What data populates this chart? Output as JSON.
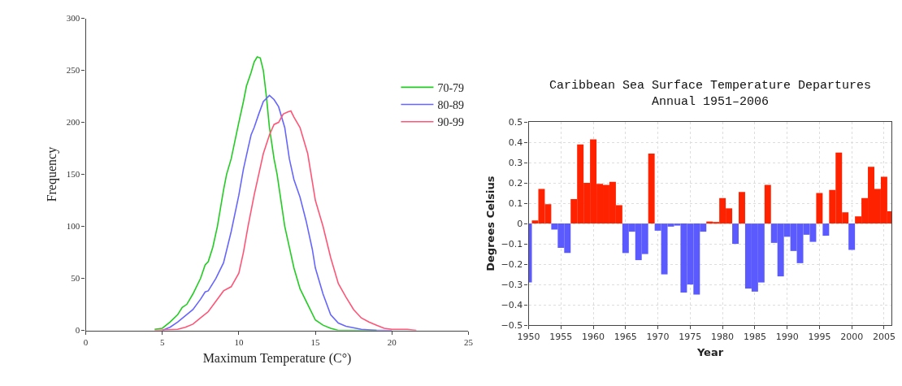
{
  "chart_data": [
    {
      "type": "line",
      "xlabel": "Maximum Temperature (C°)",
      "ylabel": "Frequency",
      "xlim": [
        0,
        25
      ],
      "ylim": [
        0,
        300
      ],
      "xticks": [
        0,
        5,
        10,
        15,
        20,
        25
      ],
      "yticks": [
        0,
        50,
        100,
        150,
        200,
        250,
        300
      ],
      "grid": false,
      "legend": "top right",
      "marker": "none",
      "line_style": "solid",
      "series": [
        {
          "name": "70-79",
          "color": "#22cc22",
          "x": [
            4.5,
            5,
            5.5,
            6,
            6.3,
            6.6,
            7,
            7.5,
            7.8,
            8,
            8.3,
            8.6,
            9,
            9.2,
            9.5,
            10,
            10.3,
            10.5,
            10.8,
            11,
            11.2,
            11.4,
            11.6,
            11.8,
            12,
            12.3,
            12.5,
            12.8,
            13,
            13.3,
            13.6,
            14,
            14.5,
            15,
            15.5,
            16,
            16.5,
            17,
            19
          ],
          "values": [
            1,
            2,
            8,
            15,
            22,
            25,
            35,
            50,
            63,
            66,
            80,
            100,
            135,
            150,
            165,
            200,
            220,
            235,
            248,
            258,
            263,
            262,
            250,
            225,
            195,
            165,
            150,
            120,
            100,
            80,
            60,
            40,
            25,
            10,
            5,
            2,
            0,
            0,
            0
          ]
        },
        {
          "name": "80-89",
          "color": "#6666ff",
          "x": [
            5,
            5.5,
            6,
            6.5,
            7,
            7.5,
            7.8,
            8,
            8.5,
            9,
            9.5,
            10,
            10.3,
            10.6,
            10.8,
            11,
            11.3,
            11.6,
            12,
            12.3,
            12.6,
            13,
            13.3,
            13.6,
            14,
            14.4,
            14.8,
            15,
            15.5,
            16,
            16.5,
            17,
            18,
            19,
            20
          ],
          "values": [
            0,
            3,
            8,
            14,
            20,
            30,
            37,
            38,
            50,
            65,
            95,
            130,
            155,
            175,
            188,
            195,
            208,
            220,
            226,
            222,
            215,
            195,
            165,
            145,
            128,
            105,
            78,
            60,
            35,
            15,
            7,
            4,
            1,
            0,
            0
          ]
        },
        {
          "name": "90-99",
          "color": "#ff5577",
          "x": [
            4.5,
            6,
            6.5,
            7,
            7.5,
            8,
            8.5,
            9,
            9.5,
            10,
            10.3,
            10.6,
            11,
            11.3,
            11.6,
            12,
            12.3,
            12.6,
            12.9,
            13.2,
            13.4,
            13.6,
            14,
            14.5,
            15,
            15.5,
            16,
            16.5,
            17,
            17.5,
            18,
            18.5,
            19,
            19.5,
            20,
            21,
            21.6
          ],
          "values": [
            0,
            1,
            3,
            6,
            12,
            18,
            28,
            38,
            42,
            55,
            75,
            100,
            130,
            150,
            170,
            188,
            198,
            200,
            208,
            210,
            211,
            205,
            195,
            170,
            125,
            100,
            70,
            45,
            32,
            20,
            12,
            8,
            5,
            2,
            1,
            1,
            0
          ]
        }
      ]
    },
    {
      "type": "bar",
      "title": "Caribbean Sea Surface Temperature Departures\nAnnual 1951–2006",
      "xlabel": "Year",
      "ylabel": "Degrees Celsius",
      "xlim": [
        1950,
        2006.2
      ],
      "ylim": [
        -0.5,
        0.5
      ],
      "xticks": [
        1950,
        1955,
        1960,
        1965,
        1970,
        1975,
        1980,
        1985,
        1990,
        1995,
        2000,
        2005
      ],
      "yticks": [
        {
          "value": -0.5,
          "label": "−0.5"
        },
        {
          "value": -0.4,
          "label": "−0.4"
        },
        {
          "value": -0.3,
          "label": "−0.3"
        },
        {
          "value": -0.2,
          "label": "−0.2"
        },
        {
          "value": -0.1,
          "label": "−0.1"
        },
        0,
        0.1,
        0.2,
        0.3,
        0.4,
        0.5
      ],
      "grid": true,
      "x": [
        1950,
        1951,
        1952,
        1953,
        1954,
        1955,
        1956,
        1957,
        1958,
        1959,
        1960,
        1961,
        1962,
        1963,
        1964,
        1965,
        1966,
        1967,
        1968,
        1969,
        1970,
        1971,
        1972,
        1973,
        1974,
        1975,
        1976,
        1977,
        1978,
        1979,
        1980,
        1981,
        1982,
        1983,
        1984,
        1985,
        1986,
        1987,
        1988,
        1989,
        1990,
        1991,
        1992,
        1993,
        1994,
        1995,
        1996,
        1997,
        1998,
        1999,
        2000,
        2001,
        2002,
        2003,
        2004,
        2005,
        2006
      ],
      "values": [
        -0.29,
        0.015,
        0.17,
        0.095,
        -0.03,
        -0.12,
        -0.145,
        0.12,
        0.39,
        0.2,
        0.415,
        0.195,
        0.19,
        0.205,
        0.09,
        -0.145,
        -0.04,
        -0.18,
        -0.15,
        0.345,
        -0.035,
        -0.25,
        -0.015,
        -0.01,
        -0.34,
        -0.3,
        -0.35,
        -0.04,
        0.01,
        0.005,
        0.125,
        0.075,
        -0.1,
        0.155,
        -0.32,
        -0.335,
        -0.29,
        0.19,
        -0.095,
        -0.26,
        -0.065,
        -0.135,
        -0.195,
        -0.055,
        -0.09,
        0.15,
        -0.06,
        0.165,
        0.35,
        0.055,
        -0.13,
        0.035,
        0.125,
        0.28,
        0.17,
        0.23,
        0.06
      ],
      "colors": [
        "#5a5aff",
        "#ff2200",
        "#ff2200",
        "#ff2200",
        "#5a5aff",
        "#5a5aff",
        "#5a5aff",
        "#ff2200",
        "#ff2200",
        "#ff2200",
        "#ff2200",
        "#ff2200",
        "#ff2200",
        "#ff2200",
        "#ff2200",
        "#5a5aff",
        "#5a5aff",
        "#5a5aff",
        "#5a5aff",
        "#ff2200",
        "#5a5aff",
        "#5a5aff",
        "#5a5aff",
        "#5a5aff",
        "#5a5aff",
        "#5a5aff",
        "#5a5aff",
        "#5a5aff",
        "#ff2200",
        "#ff2200",
        "#ff2200",
        "#ff2200",
        "#5a5aff",
        "#ff2200",
        "#5a5aff",
        "#5a5aff",
        "#5a5aff",
        "#ff2200",
        "#5a5aff",
        "#5a5aff",
        "#5a5aff",
        "#5a5aff",
        "#5a5aff",
        "#5a5aff",
        "#5a5aff",
        "#ff2200",
        "#5a5aff",
        "#ff2200",
        "#ff2200",
        "#ff2200",
        "#5a5aff",
        "#ff2200",
        "#ff2200",
        "#ff2200",
        "#ff2200",
        "#ff2200",
        "#ff2200"
      ]
    }
  ]
}
